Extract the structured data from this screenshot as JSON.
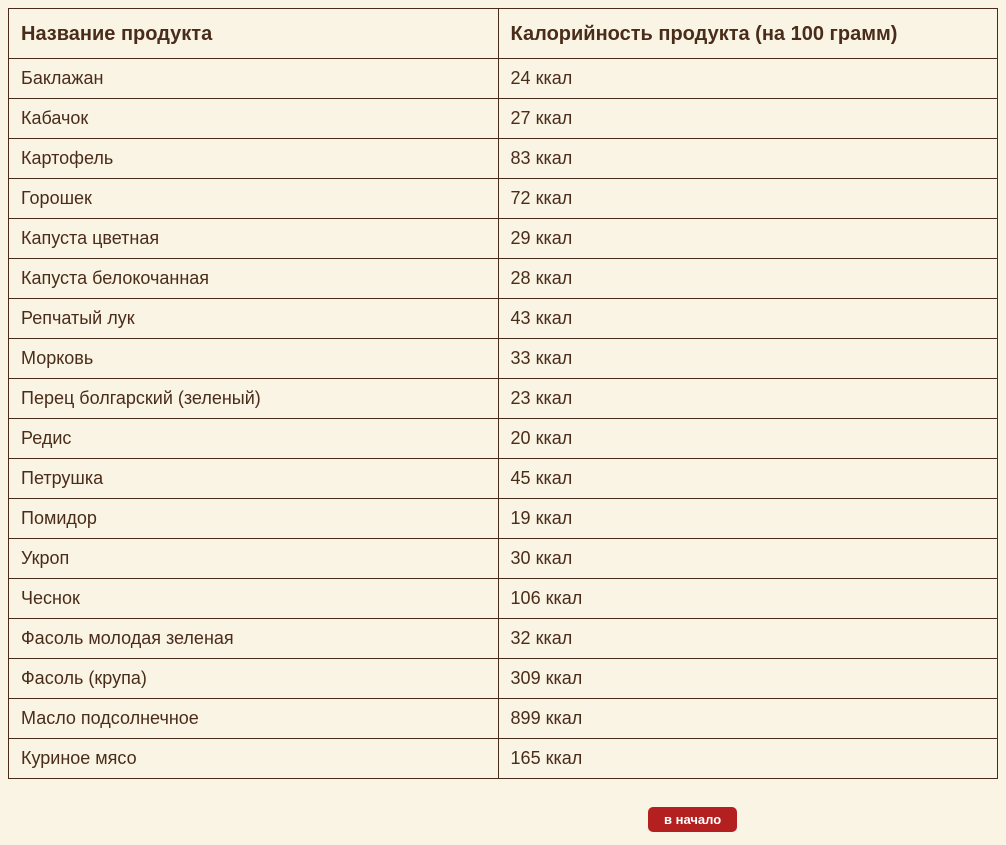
{
  "table": {
    "columns": [
      "Название продукта",
      "Калорийность продукта (на 100 грамм)"
    ],
    "rows": [
      [
        "Баклажан",
        "24 ккал"
      ],
      [
        "Кабачок",
        "27 ккал"
      ],
      [
        "Картофель",
        "83 ккал"
      ],
      [
        "Горошек",
        "72 ккал"
      ],
      [
        "Капуста цветная",
        "29 ккал"
      ],
      [
        "Капуста белокочанная",
        "28 ккал"
      ],
      [
        "Репчатый лук",
        "43 ккал"
      ],
      [
        "Морковь",
        "33 ккал"
      ],
      [
        "Перец болгарский (зеленый)",
        "23 ккал"
      ],
      [
        "Редис",
        "20 ккал"
      ],
      [
        "Петрушка",
        "45 ккал"
      ],
      [
        "Помидор",
        "19 ккал"
      ],
      [
        "Укроп",
        "30 ккал"
      ],
      [
        "Чеснок",
        "106 ккал"
      ],
      [
        "Фасоль молодая зеленая",
        "32 ккал"
      ],
      [
        "Фасоль (крупа)",
        "309 ккал"
      ],
      [
        "Масло подсолнечное",
        "899 ккал"
      ],
      [
        "Куриное мясо",
        "165 ккал"
      ]
    ],
    "column_widths": [
      "49.5%",
      "50.5%"
    ],
    "header_fontsize": 20,
    "body_fontsize": 18,
    "text_color": "#4a2c1a",
    "border_color": "#4a2c1a",
    "background_color": "#faf4e4"
  },
  "scroll_button": {
    "label": "в начало",
    "background_color": "#b42020",
    "text_color": "#ffffff"
  }
}
